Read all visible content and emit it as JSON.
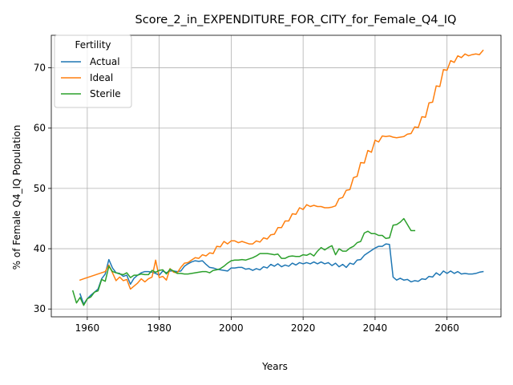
{
  "chart_data": {
    "type": "line",
    "title": "Score_2_in_EXPENDITURE_FOR_CITY_for_Female_Q4_IQ",
    "xlabel": "Years",
    "ylabel": "% of Female Q4_IQ Population",
    "xlim": [
      1950,
      2075
    ],
    "ylim": [
      28.7,
      75.4
    ],
    "xticks": [
      1960,
      1980,
      2000,
      2020,
      2040,
      2060
    ],
    "yticks": [
      30,
      40,
      50,
      60,
      70
    ],
    "grid": true,
    "legend": {
      "title": "Fertility",
      "placement": "top-left"
    },
    "series": [
      {
        "name": "Actual",
        "color": "#1f77b4",
        "x": [
          1958,
          1959,
          1960,
          1961,
          1962,
          1963,
          1964,
          1965,
          1966,
          1967,
          1968,
          1969,
          1970,
          1971,
          1972,
          1973,
          1974,
          1975,
          1976,
          1977,
          1978,
          1979,
          1980,
          1981,
          1982,
          1983,
          1984,
          1985,
          1986,
          1987,
          1988,
          1989,
          1990,
          1991,
          1992,
          1993,
          1994,
          1995,
          1996,
          1997,
          1998,
          1999,
          2000,
          2001,
          2002,
          2003,
          2004,
          2005,
          2006,
          2007,
          2008,
          2009,
          2010,
          2011,
          2012,
          2013,
          2014,
          2015,
          2016,
          2017,
          2018,
          2019,
          2020,
          2021,
          2022,
          2023,
          2024,
          2025,
          2026,
          2027,
          2028,
          2029,
          2030,
          2031,
          2032,
          2033,
          2034,
          2035,
          2036,
          2037,
          2038,
          2039,
          2040,
          2041,
          2042,
          2043,
          2044,
          2045,
          2046,
          2047,
          2048,
          2049,
          2050,
          2051,
          2052,
          2053,
          2054,
          2055,
          2056,
          2057,
          2058,
          2059,
          2060,
          2061,
          2062,
          2063,
          2064,
          2065,
          2066,
          2067,
          2068,
          2069,
          2070
        ],
        "values": [
          32.5,
          30.8,
          31.7,
          32.3,
          32.8,
          33.3,
          35.0,
          35.8,
          38.2,
          36.8,
          36.0,
          35.9,
          35.4,
          35.6,
          34.1,
          35.1,
          35.6,
          36.0,
          36.2,
          36.2,
          36.1,
          35.9,
          35.6,
          36.3,
          36.0,
          36.3,
          36.3,
          36.2,
          36.3,
          37.1,
          37.5,
          37.8,
          38.0,
          37.9,
          38.0,
          37.4,
          36.9,
          36.8,
          36.6,
          36.5,
          36.4,
          36.3,
          36.8,
          36.8,
          36.9,
          36.9,
          36.6,
          36.7,
          36.4,
          36.7,
          36.5,
          37.0,
          36.8,
          37.4,
          37.1,
          37.5,
          37.0,
          37.3,
          37.1,
          37.6,
          37.3,
          37.7,
          37.5,
          37.7,
          37.5,
          37.8,
          37.5,
          37.8,
          37.5,
          37.7,
          37.2,
          37.6,
          37.0,
          37.4,
          36.9,
          37.6,
          37.4,
          38.1,
          38.2,
          38.9,
          39.3,
          39.7,
          40.1,
          40.4,
          40.4,
          40.8,
          40.7,
          35.3,
          34.8,
          35.1,
          34.8,
          34.9,
          34.5,
          34.7,
          34.6,
          35.0,
          34.9,
          35.4,
          35.3,
          36.0,
          35.6,
          36.3,
          35.9,
          36.3,
          35.9,
          36.2,
          35.8,
          35.9,
          35.8,
          35.8,
          35.9,
          36.1,
          36.2
        ]
      },
      {
        "name": "Ideal",
        "color": "#ff7f0e",
        "x": [
          1958,
          1959,
          1960,
          1961,
          1962,
          1963,
          1964,
          1965,
          1966,
          1967,
          1968,
          1969,
          1970,
          1971,
          1972,
          1973,
          1974,
          1975,
          1976,
          1977,
          1978,
          1979,
          1980,
          1981,
          1982,
          1983,
          1984,
          1985,
          1986,
          1987,
          1988,
          1989,
          1990,
          1991,
          1992,
          1993,
          1994,
          1995,
          1996,
          1997,
          1998,
          1999,
          2000,
          2001,
          2002,
          2003,
          2004,
          2005,
          2006,
          2007,
          2008,
          2009,
          2010,
          2011,
          2012,
          2013,
          2014,
          2015,
          2016,
          2017,
          2018,
          2019,
          2020,
          2021,
          2022,
          2023,
          2024,
          2025,
          2026,
          2027,
          2028,
          2029,
          2030,
          2031,
          2032,
          2033,
          2034,
          2035,
          2036,
          2037,
          2038,
          2039,
          2040,
          2041,
          2042,
          2043,
          2044,
          2045,
          2046,
          2047,
          2048,
          2049,
          2050,
          2051,
          2052,
          2053,
          2054,
          2055,
          2056,
          2057,
          2058,
          2059,
          2060,
          2061,
          2062,
          2063,
          2064,
          2065,
          2066,
          2067,
          2068,
          2069,
          2070
        ],
        "values": [
          34.8,
          35.0,
          35.2,
          35.4,
          35.6,
          35.8,
          36.0,
          36.2,
          37.3,
          36.0,
          34.7,
          35.3,
          34.7,
          34.9,
          33.3,
          33.8,
          34.3,
          35.0,
          34.5,
          35.0,
          35.3,
          38.1,
          35.2,
          35.4,
          34.8,
          36.7,
          36.1,
          36.0,
          36.9,
          37.6,
          37.7,
          38.1,
          38.5,
          38.4,
          39.0,
          38.8,
          39.3,
          39.2,
          40.4,
          40.3,
          41.2,
          40.8,
          41.3,
          41.3,
          41.0,
          41.2,
          41.0,
          40.8,
          40.8,
          41.3,
          41.1,
          41.8,
          41.6,
          42.3,
          42.4,
          43.5,
          43.5,
          44.6,
          44.6,
          45.8,
          45.7,
          46.8,
          46.5,
          47.3,
          47.0,
          47.2,
          47.0,
          47.0,
          46.8,
          46.8,
          46.9,
          47.1,
          48.3,
          48.5,
          49.7,
          49.8,
          51.8,
          52.0,
          54.3,
          54.2,
          56.3,
          56.0,
          58.0,
          57.7,
          58.7,
          58.6,
          58.7,
          58.5,
          58.4,
          58.5,
          58.6,
          59.0,
          59.1,
          60.2,
          60.1,
          61.9,
          61.8,
          64.2,
          64.3,
          67.0,
          66.9,
          69.7,
          69.6,
          71.2,
          70.9,
          72.0,
          71.7,
          72.3,
          72.0,
          72.2,
          72.3,
          72.2,
          72.9
        ]
      },
      {
        "name": "Sterile",
        "color": "#2ca02c",
        "x": [
          1956,
          1957,
          1958,
          1959,
          1960,
          1961,
          1962,
          1963,
          1964,
          1965,
          1966,
          1967,
          1968,
          1969,
          1970,
          1971,
          1972,
          1973,
          1974,
          1975,
          1976,
          1977,
          1978,
          1979,
          1980,
          1981,
          1982,
          1983,
          1984,
          1985,
          1986,
          1987,
          1988,
          1989,
          1990,
          1991,
          1992,
          1993,
          1994,
          1995,
          1996,
          1997,
          1998,
          1999,
          2000,
          2001,
          2002,
          2003,
          2004,
          2005,
          2006,
          2007,
          2008,
          2009,
          2010,
          2011,
          2012,
          2013,
          2014,
          2015,
          2016,
          2017,
          2018,
          2019,
          2020,
          2021,
          2022,
          2023,
          2024,
          2025,
          2026,
          2027,
          2028,
          2029,
          2030,
          2031,
          2032,
          2033,
          2034,
          2035,
          2036,
          2037,
          2038,
          2039,
          2040,
          2041,
          2042,
          2043,
          2044,
          2045,
          2046,
          2047,
          2048,
          2049,
          2050,
          2051
        ],
        "values": [
          33.0,
          31.0,
          31.9,
          30.6,
          31.7,
          32.0,
          32.8,
          33.0,
          34.9,
          34.6,
          37.1,
          36.2,
          36.0,
          35.8,
          35.7,
          36.0,
          35.2,
          35.6,
          35.6,
          35.8,
          35.7,
          35.7,
          36.4,
          36.1,
          36.4,
          36.5,
          35.8,
          36.6,
          36.3,
          35.9,
          35.9,
          35.8,
          35.8,
          35.9,
          36.0,
          36.1,
          36.2,
          36.2,
          36.0,
          36.4,
          36.5,
          36.7,
          37.1,
          37.6,
          38.0,
          38.1,
          38.1,
          38.2,
          38.1,
          38.3,
          38.5,
          38.8,
          39.2,
          39.2,
          39.2,
          39.1,
          39.0,
          39.1,
          38.4,
          38.4,
          38.7,
          38.8,
          38.7,
          38.7,
          39.0,
          38.9,
          39.2,
          38.8,
          39.6,
          40.2,
          39.8,
          40.2,
          40.5,
          39.0,
          40.0,
          39.6,
          39.6,
          40.1,
          40.4,
          41.0,
          41.2,
          42.6,
          42.9,
          42.5,
          42.5,
          42.2,
          42.2,
          41.7,
          41.8,
          43.9,
          44.0,
          44.4,
          45.0,
          44.0,
          43.0,
          43.0
        ]
      }
    ]
  }
}
